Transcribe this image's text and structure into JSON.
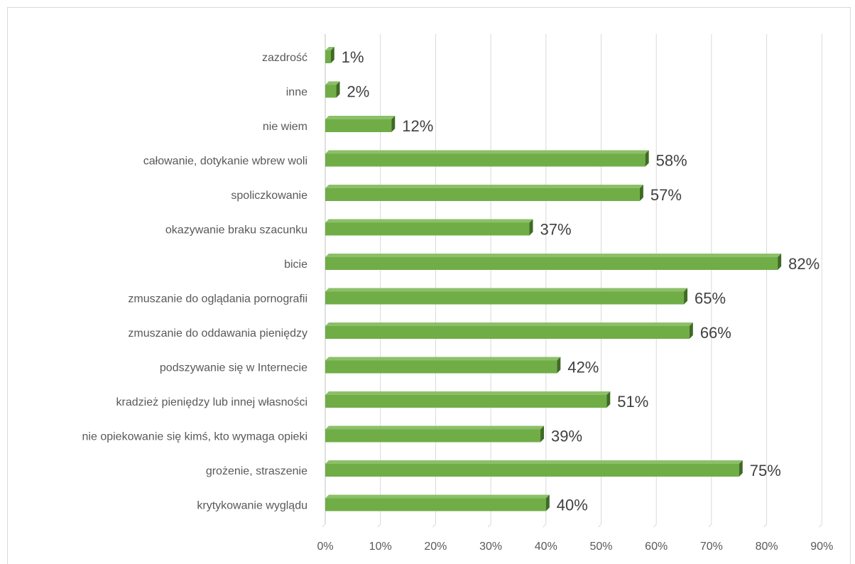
{
  "chart_data": {
    "type": "bar",
    "orientation": "horizontal",
    "title": "",
    "xlabel": "",
    "ylabel": "",
    "categories": [
      "zazdrość",
      "inne",
      "nie wiem",
      "całowanie, dotykanie wbrew woli",
      "spoliczkowanie",
      "okazywanie braku szacunku",
      "bicie",
      "zmuszanie do oglądania pornografii",
      "zmuszanie do oddawania pieniędzy",
      "podszywanie się w Internecie",
      "kradzież pieniędzy lub innej własności",
      "nie opiekowanie się kimś, kto wymaga opieki",
      "grożenie, straszenie",
      "krytykowanie wyglądu"
    ],
    "values": [
      1,
      2,
      12,
      58,
      57,
      37,
      82,
      65,
      66,
      42,
      51,
      39,
      75,
      40
    ],
    "data_labels": [
      "1%",
      "2%",
      "12%",
      "58%",
      "57%",
      "37%",
      "82%",
      "65%",
      "66%",
      "42%",
      "51%",
      "39%",
      "75%",
      "40%"
    ],
    "xlim": [
      0,
      90
    ],
    "x_ticks": [
      "0%",
      "10%",
      "20%",
      "30%",
      "40%",
      "50%",
      "60%",
      "70%",
      "80%",
      "90%"
    ],
    "grid": true,
    "legend": "none",
    "colors": {
      "bar_front": "#70ad47",
      "bar_top": "#8cc068",
      "bar_side": "#3f6b25",
      "grid": "#d9d9d9",
      "axis": "#bfbfbf"
    }
  }
}
